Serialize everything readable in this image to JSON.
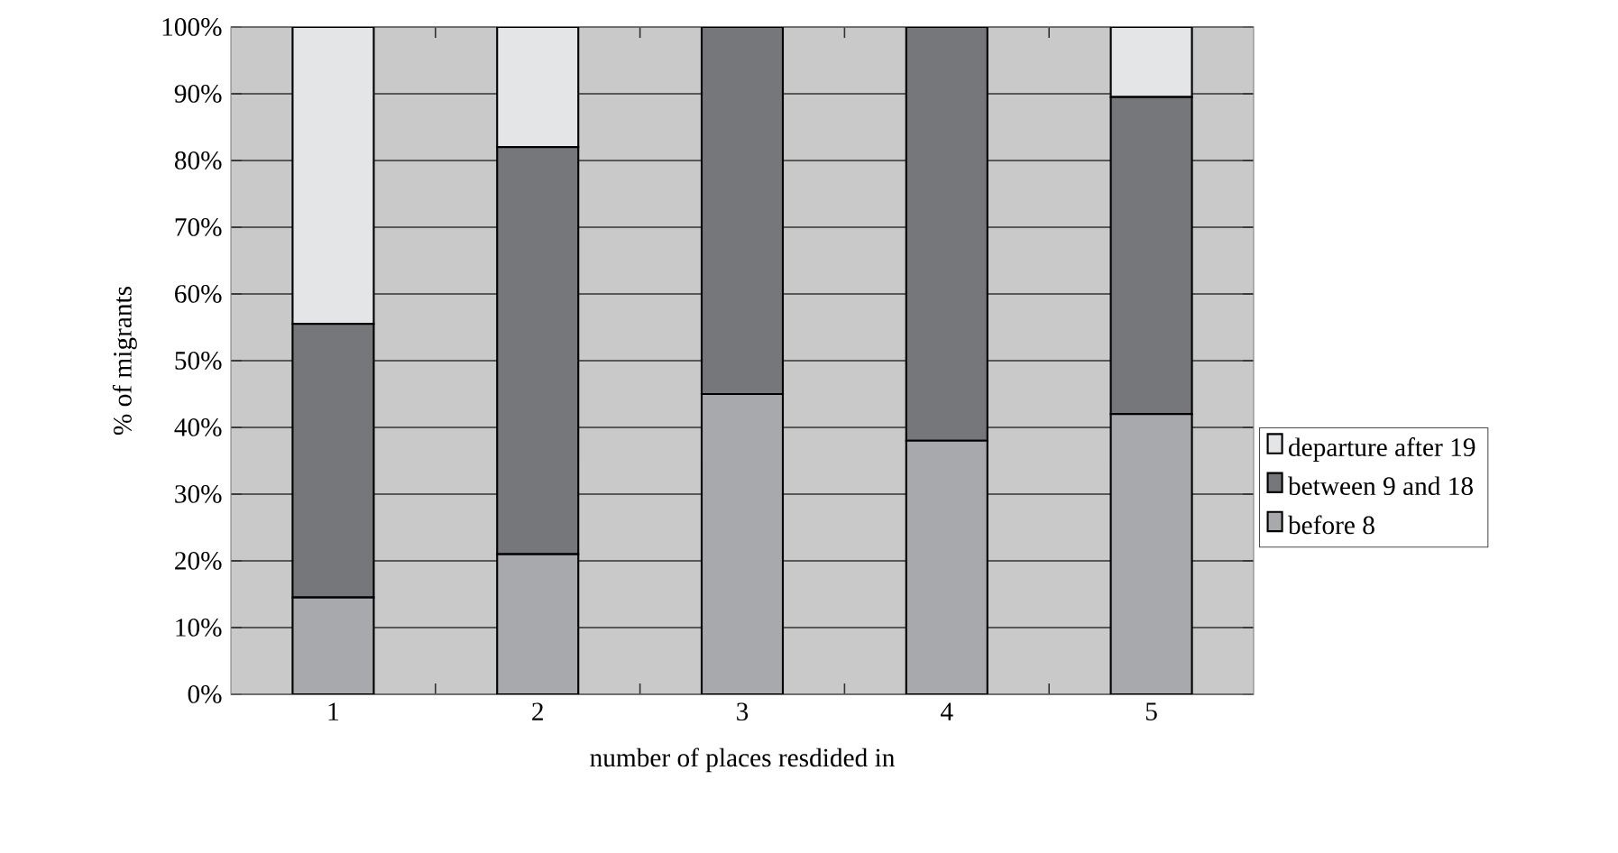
{
  "chart_data": {
    "type": "bar",
    "stacked": true,
    "xlabel": "number of places resdided in",
    "ylabel": "% of migrants",
    "categories": [
      "1",
      "2",
      "3",
      "4",
      "5"
    ],
    "series": [
      {
        "name": "before 8",
        "color": "#a8a9ad",
        "values": [
          14.5,
          21,
          45,
          38,
          42
        ]
      },
      {
        "name": "between 9 and 18",
        "color": "#76777b",
        "values": [
          41,
          61,
          55,
          62,
          47.5
        ]
      },
      {
        "name": "departure after 19",
        "color": "#e4e5e7",
        "values": [
          44.5,
          18,
          0,
          0,
          10.5
        ]
      }
    ],
    "ylim": [
      0,
      100
    ],
    "yticks": [
      {
        "value": 0,
        "label": "0%"
      },
      {
        "value": 10,
        "label": "10%"
      },
      {
        "value": 20,
        "label": "20%"
      },
      {
        "value": 30,
        "label": "30%"
      },
      {
        "value": 40,
        "label": "40%"
      },
      {
        "value": 50,
        "label": "50%"
      },
      {
        "value": 60,
        "label": "60%"
      },
      {
        "value": 70,
        "label": "70%"
      },
      {
        "value": 80,
        "label": "80%"
      },
      {
        "value": 90,
        "label": "90%"
      },
      {
        "value": 100,
        "label": "100%"
      }
    ],
    "grid": "y",
    "legend": "right"
  }
}
